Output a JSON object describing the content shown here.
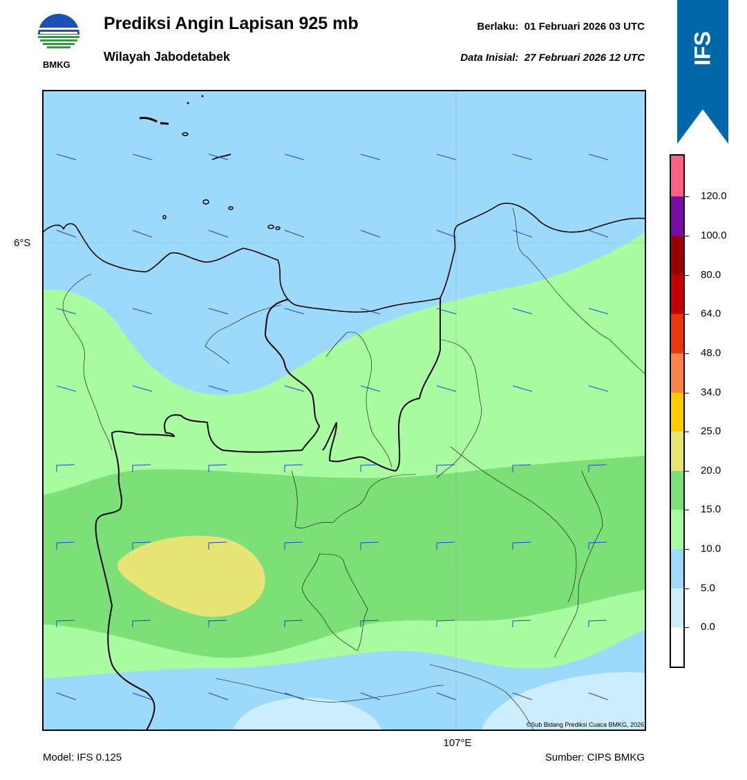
{
  "header": {
    "title": "Prediksi Angin Lapisan 925 mb",
    "subtitle": "Wilayah Jabodetabek",
    "valid_label": "Berlaku:",
    "valid_value": "01 Februari 2026 03 UTC",
    "init_label": "Data Inisial:",
    "init_value": "27 Februari 2026 12 UTC",
    "logo_text": "BMKG"
  },
  "badge": {
    "text": "IFS",
    "color": "#0068a8"
  },
  "map": {
    "lat_label": "6°S",
    "lon_label": "107°E",
    "copyright": "©Sub Bidang Prediksi Cuaca BMKG, 2026",
    "barb_color": "#1f3fd8",
    "coast_color": "#000000"
  },
  "footer": {
    "model": "Model: IFS 0.125",
    "source": "Sumber: CIPS BMKG"
  },
  "colorbar": {
    "labels": [
      "0.0",
      "5.0",
      "10.0",
      "15.0",
      "20.0",
      "25.0",
      "34.0",
      "48.0",
      "64.0",
      "80.0",
      "100.0",
      "120.0"
    ],
    "colors": [
      "#ffffff",
      "#cceeff",
      "#9dd9fb",
      "#a9fca0",
      "#7ddf78",
      "#e6e575",
      "#ffcb00",
      "#ff8248",
      "#e8370e",
      "#c40000",
      "#990000",
      "#7a0ca6",
      "#ff6185"
    ]
  }
}
